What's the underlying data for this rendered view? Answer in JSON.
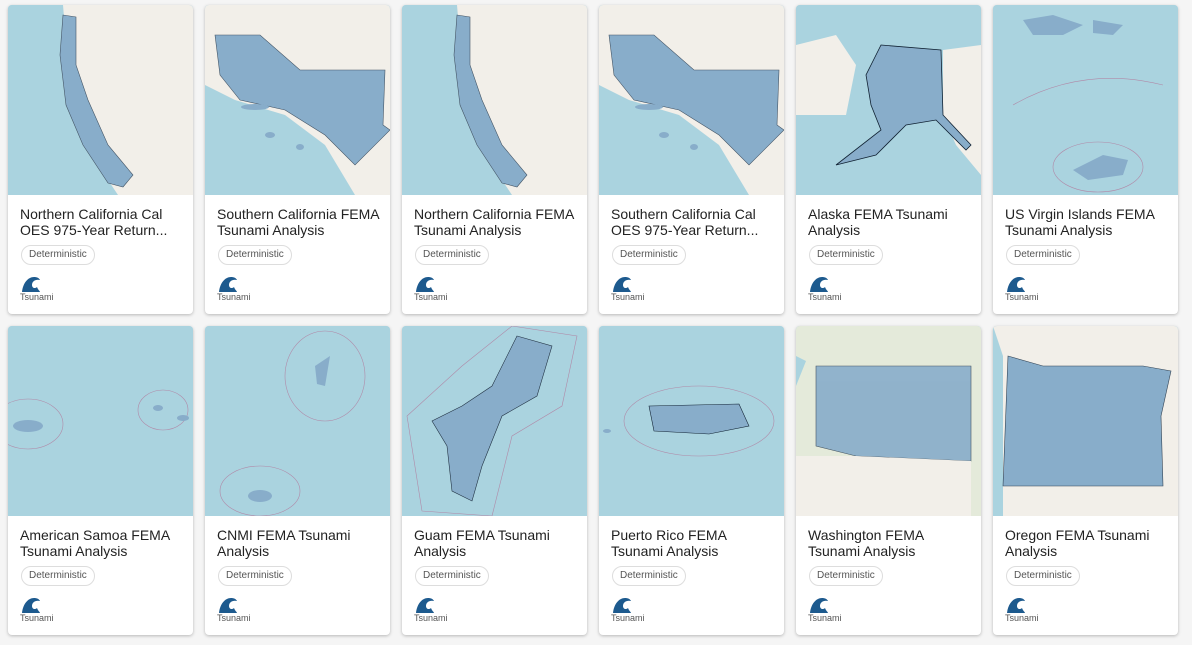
{
  "colors": {
    "sea": "#aad3df",
    "land": "#f2efe9",
    "overlay": "#88adca",
    "icon": "#1d5a8e"
  },
  "cards": [
    {
      "title": "Northern California Cal OES 975-Year Return...",
      "tag": "Deterministic",
      "hazard": "Tsunami",
      "hazard_icon": "tsunami-wave-icon"
    },
    {
      "title": "Southern California FEMA Tsunami Analysis",
      "tag": "Deterministic",
      "hazard": "Tsunami",
      "hazard_icon": "tsunami-wave-icon"
    },
    {
      "title": "Northern California FEMA Tsunami Analysis",
      "tag": "Deterministic",
      "hazard": "Tsunami",
      "hazard_icon": "tsunami-wave-icon"
    },
    {
      "title": "Southern California Cal OES 975-Year Return...",
      "tag": "Deterministic",
      "hazard": "Tsunami",
      "hazard_icon": "tsunami-wave-icon"
    },
    {
      "title": "Alaska FEMA Tsunami Analysis",
      "tag": "Deterministic",
      "hazard": "Tsunami",
      "hazard_icon": "tsunami-wave-icon"
    },
    {
      "title": "US Virgin Islands FEMA Tsunami Analysis",
      "tag": "Deterministic",
      "hazard": "Tsunami",
      "hazard_icon": "tsunami-wave-icon"
    },
    {
      "title": "American Samoa FEMA Tsunami Analysis",
      "tag": "Deterministic",
      "hazard": "Tsunami",
      "hazard_icon": "tsunami-wave-icon"
    },
    {
      "title": "CNMI FEMA Tsunami Analysis",
      "tag": "Deterministic",
      "hazard": "Tsunami",
      "hazard_icon": "tsunami-wave-icon"
    },
    {
      "title": "Guam FEMA Tsunami Analysis",
      "tag": "Deterministic",
      "hazard": "Tsunami",
      "hazard_icon": "tsunami-wave-icon"
    },
    {
      "title": "Puerto Rico FEMA Tsunami Analysis",
      "tag": "Deterministic",
      "hazard": "Tsunami",
      "hazard_icon": "tsunami-wave-icon"
    },
    {
      "title": "Washington FEMA Tsunami Analysis",
      "tag": "Deterministic",
      "hazard": "Tsunami",
      "hazard_icon": "tsunami-wave-icon"
    },
    {
      "title": "Oregon FEMA Tsunami Analysis",
      "tag": "Deterministic",
      "hazard": "Tsunami",
      "hazard_icon": "tsunami-wave-icon"
    }
  ]
}
